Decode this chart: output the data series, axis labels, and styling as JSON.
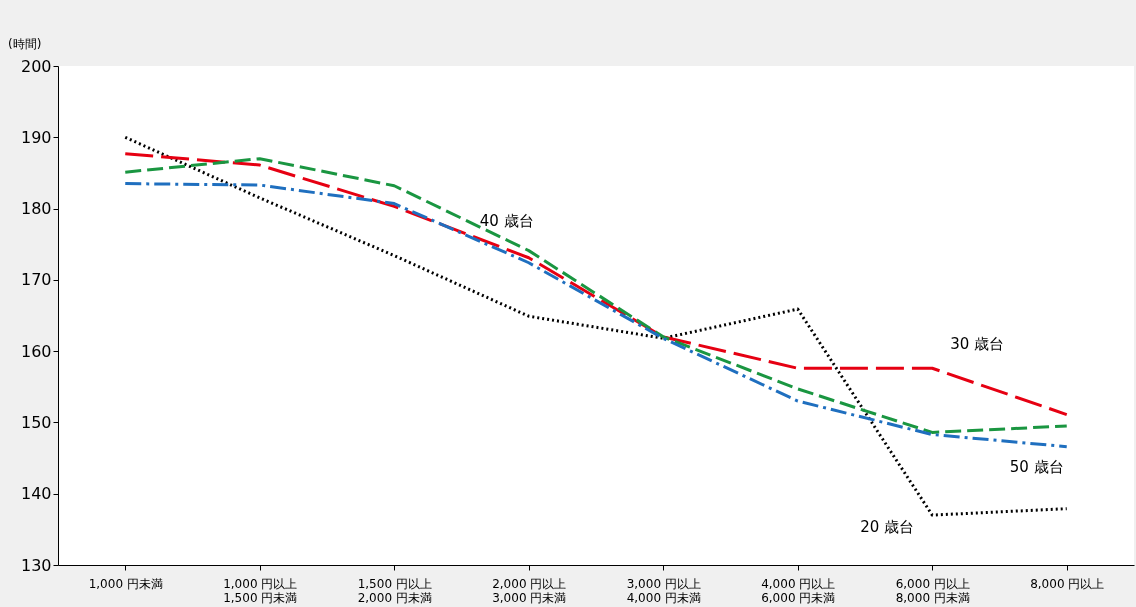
{
  "chart_data": {
    "type": "line",
    "ylabel": "(時間)",
    "categories": [
      "1,000 円未満",
      "1,000 円以上\n1,500 円未満",
      "1,500 円以上\n2,000 円未満",
      "2,000 円以上\n3,000 円未満",
      "3,000 円以上\n4,000 円未満",
      "4,000 円以上\n6,000 円未満",
      "6,000 円以上\n8,000 円未満",
      "8,000 円以上"
    ],
    "series": [
      {
        "name": "20 歳台",
        "color": "#000000",
        "line_style": "dotted",
        "values": [
          190.0,
          181.5,
          173.4,
          164.9,
          161.8,
          165.9,
          137.0,
          137.9
        ]
      },
      {
        "name": "30 歳台",
        "color": "#e60012",
        "line_style": "dashed",
        "values": [
          187.7,
          186.1,
          180.3,
          173.1,
          162.0,
          157.6,
          157.6,
          151.1
        ]
      },
      {
        "name": "40 歳台",
        "color": "#1a9641",
        "line_style": "dashed",
        "values": [
          185.1,
          187.0,
          183.2,
          174.1,
          162.0,
          154.7,
          148.6,
          149.5
        ]
      },
      {
        "name": "50 歳台",
        "color": "#1f6fbf",
        "line_style": "dashed",
        "values": [
          183.5,
          183.3,
          180.7,
          172.4,
          161.8,
          153.0,
          148.3,
          146.6
        ]
      }
    ],
    "ylim": [
      130,
      200
    ],
    "yticks": [
      130,
      140,
      150,
      160,
      170,
      180,
      190,
      200
    ],
    "grid": false
  }
}
